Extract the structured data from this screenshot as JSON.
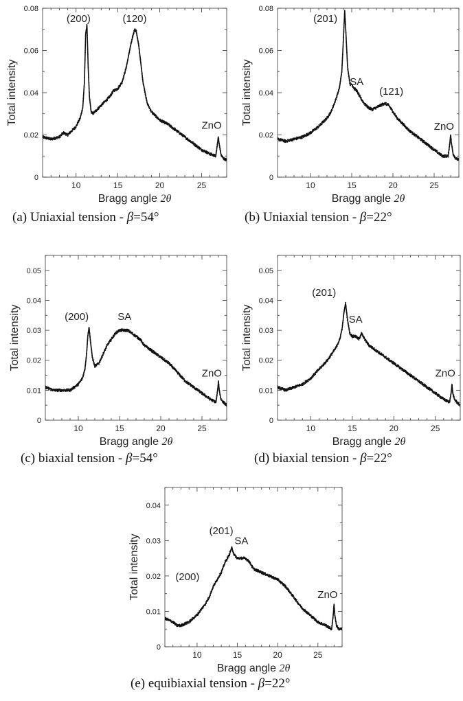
{
  "chart_data": [
    {
      "type": "scatter",
      "caption": "(a) Uniaxial tension - ",
      "caption_beta": "β",
      "caption_value": "=54°",
      "xlabel": "Bragg angle ",
      "xlabel_symbol": "2θ",
      "ylabel": "Total intensity",
      "xlim": [
        6,
        28
      ],
      "ylim": [
        0,
        0.08
      ],
      "xticks": [
        10,
        15,
        20,
        25
      ],
      "yticks": [
        0,
        0.02,
        0.04,
        0.06,
        0.08
      ],
      "ytick_labels": [
        "0",
        "0.02",
        "0.04",
        "0.06",
        "0.08"
      ],
      "annotations": [
        {
          "text": "(200)",
          "x": 10.3,
          "y": 0.0735
        },
        {
          "text": "(120)",
          "x": 17.0,
          "y": 0.0735
        },
        {
          "text": "ZnO",
          "x": 26.2,
          "y": 0.023
        }
      ],
      "series": [
        {
          "x": [
            6.0,
            7.0,
            8.0,
            8.5,
            9.0,
            9.5,
            10.0,
            10.5,
            10.8,
            11.0,
            11.15,
            11.3,
            11.45,
            11.6,
            11.8,
            12.0,
            12.5,
            13.0,
            13.5,
            14.0,
            14.5,
            15.0,
            15.5,
            16.0,
            16.5,
            16.8,
            17.0,
            17.2,
            17.5,
            18.0,
            18.5,
            19.0,
            20.0,
            21.0,
            22.0,
            23.0,
            24.0,
            25.0,
            26.0,
            26.7,
            26.9,
            27.0,
            27.1,
            27.3,
            27.6,
            28.0
          ],
          "values": [
            0.019,
            0.018,
            0.019,
            0.021,
            0.02,
            0.022,
            0.024,
            0.028,
            0.033,
            0.045,
            0.068,
            0.072,
            0.052,
            0.038,
            0.031,
            0.03,
            0.032,
            0.034,
            0.036,
            0.038,
            0.041,
            0.042,
            0.045,
            0.052,
            0.062,
            0.067,
            0.07,
            0.069,
            0.062,
            0.045,
            0.035,
            0.031,
            0.027,
            0.025,
            0.022,
            0.019,
            0.016,
            0.013,
            0.011,
            0.01,
            0.016,
            0.019,
            0.016,
            0.011,
            0.009,
            0.008
          ]
        }
      ]
    },
    {
      "type": "scatter",
      "caption": "(b) Uniaxial tension - ",
      "caption_beta": "β",
      "caption_value": "=22°",
      "xlabel": "Bragg angle ",
      "xlabel_symbol": "2θ",
      "ylabel": "Total intensity",
      "xlim": [
        6,
        28
      ],
      "ylim": [
        0,
        0.08
      ],
      "xticks": [
        10,
        15,
        20,
        25
      ],
      "yticks": [
        0,
        0.02,
        0.04,
        0.06,
        0.08
      ],
      "ytick_labels": [
        "0",
        "0.02",
        "0.04",
        "0.06",
        "0.08"
      ],
      "annotations": [
        {
          "text": "(201)",
          "x": 11.8,
          "y": 0.0735
        },
        {
          "text": "SA",
          "x": 15.6,
          "y": 0.0435
        },
        {
          "text": "(121)",
          "x": 19.8,
          "y": 0.039
        },
        {
          "text": "ZnO",
          "x": 26.2,
          "y": 0.0225
        }
      ],
      "series": [
        {
          "x": [
            6.0,
            7.0,
            8.0,
            9.0,
            10.0,
            11.0,
            12.0,
            12.5,
            13.0,
            13.5,
            13.8,
            14.0,
            14.15,
            14.3,
            14.5,
            14.8,
            15.0,
            15.3,
            15.6,
            16.0,
            16.5,
            17.0,
            17.5,
            18.0,
            18.5,
            19.0,
            19.5,
            20.0,
            20.5,
            21.0,
            22.0,
            23.0,
            24.0,
            25.0,
            26.0,
            26.7,
            26.9,
            27.0,
            27.1,
            27.3,
            27.6,
            28.0
          ],
          "values": [
            0.018,
            0.017,
            0.018,
            0.019,
            0.021,
            0.024,
            0.028,
            0.031,
            0.036,
            0.042,
            0.05,
            0.066,
            0.079,
            0.068,
            0.052,
            0.044,
            0.044,
            0.042,
            0.041,
            0.038,
            0.035,
            0.033,
            0.032,
            0.033,
            0.034,
            0.035,
            0.034,
            0.031,
            0.028,
            0.026,
            0.022,
            0.019,
            0.016,
            0.013,
            0.01,
            0.01,
            0.016,
            0.02,
            0.016,
            0.011,
            0.009,
            0.008
          ]
        }
      ]
    },
    {
      "type": "scatter",
      "caption": "(c) biaxial tension - ",
      "caption_beta": "β",
      "caption_value": "=54°",
      "xlabel": "Bragg angle ",
      "xlabel_symbol": "2θ",
      "ylabel": "Total intensity",
      "xlim": [
        6,
        28
      ],
      "ylim": [
        0,
        0.055
      ],
      "xticks": [
        10,
        15,
        20,
        25
      ],
      "yticks": [
        0,
        0.01,
        0.02,
        0.03,
        0.04,
        0.05
      ],
      "ytick_labels": [
        "0",
        "0.01",
        "0.02",
        "0.03",
        "0.04",
        "0.05"
      ],
      "annotations": [
        {
          "text": "(200)",
          "x": 9.8,
          "y": 0.0335
        },
        {
          "text": "SA",
          "x": 15.6,
          "y": 0.0335
        },
        {
          "text": "ZnO",
          "x": 26.2,
          "y": 0.0145
        }
      ],
      "series": [
        {
          "x": [
            6.0,
            7.0,
            8.0,
            9.0,
            10.0,
            10.5,
            10.8,
            11.0,
            11.15,
            11.3,
            11.45,
            11.7,
            12.0,
            12.5,
            13.0,
            13.5,
            14.0,
            14.5,
            15.0,
            15.5,
            16.0,
            16.5,
            17.0,
            17.5,
            18.0,
            19.0,
            20.0,
            21.0,
            22.0,
            23.0,
            24.0,
            25.0,
            26.0,
            26.7,
            26.9,
            27.0,
            27.1,
            27.3,
            27.6,
            28.0
          ],
          "values": [
            0.011,
            0.01,
            0.01,
            0.01,
            0.012,
            0.014,
            0.017,
            0.022,
            0.028,
            0.031,
            0.027,
            0.021,
            0.018,
            0.019,
            0.022,
            0.025,
            0.027,
            0.029,
            0.03,
            0.03,
            0.03,
            0.029,
            0.028,
            0.027,
            0.025,
            0.023,
            0.021,
            0.019,
            0.016,
            0.013,
            0.011,
            0.009,
            0.007,
            0.006,
            0.01,
            0.013,
            0.01,
            0.007,
            0.006,
            0.005
          ]
        }
      ]
    },
    {
      "type": "scatter",
      "caption": "(d) biaxial tension - ",
      "caption_beta": "β",
      "caption_value": "=22°",
      "xlabel": "Bragg angle ",
      "xlabel_symbol": "2θ",
      "ylabel": "Total intensity",
      "xlim": [
        6,
        28
      ],
      "ylim": [
        0,
        0.055
      ],
      "xticks": [
        10,
        15,
        20,
        25
      ],
      "yticks": [
        0,
        0.01,
        0.02,
        0.03,
        0.04,
        0.05
      ],
      "ytick_labels": [
        "0",
        "0.01",
        "0.02",
        "0.03",
        "0.04",
        "0.05"
      ],
      "annotations": [
        {
          "text": "(201)",
          "x": 11.6,
          "y": 0.0415
        },
        {
          "text": "SA",
          "x": 15.4,
          "y": 0.0325
        },
        {
          "text": "ZnO",
          "x": 26.2,
          "y": 0.0145
        }
      ],
      "series": [
        {
          "x": [
            6.0,
            7.0,
            8.0,
            9.0,
            10.0,
            11.0,
            12.0,
            12.5,
            13.0,
            13.5,
            13.8,
            14.0,
            14.2,
            14.4,
            14.7,
            15.0,
            15.4,
            15.8,
            16.1,
            16.5,
            17.0,
            17.5,
            18.0,
            18.5,
            19.0,
            20.0,
            21.0,
            22.0,
            23.0,
            24.0,
            25.0,
            26.0,
            26.7,
            26.9,
            27.0,
            27.1,
            27.3,
            27.6,
            28.0
          ],
          "values": [
            0.011,
            0.01,
            0.011,
            0.012,
            0.014,
            0.017,
            0.02,
            0.022,
            0.024,
            0.027,
            0.031,
            0.036,
            0.039,
            0.034,
            0.029,
            0.028,
            0.028,
            0.027,
            0.029,
            0.027,
            0.025,
            0.024,
            0.023,
            0.022,
            0.021,
            0.019,
            0.017,
            0.015,
            0.013,
            0.011,
            0.009,
            0.007,
            0.006,
            0.009,
            0.012,
            0.009,
            0.007,
            0.006,
            0.005
          ]
        }
      ]
    },
    {
      "type": "scatter",
      "caption": "(e) equibiaxial tension - ",
      "caption_beta": "β",
      "caption_value": "=22°",
      "xlabel": "Bragg angle ",
      "xlabel_symbol": "2θ",
      "ylabel": "Total intensity",
      "xlim": [
        6,
        28
      ],
      "ylim": [
        0,
        0.045
      ],
      "xticks": [
        10,
        15,
        20,
        25
      ],
      "yticks": [
        0,
        0.01,
        0.02,
        0.03,
        0.04
      ],
      "ytick_labels": [
        "0",
        "0.01",
        "0.02",
        "0.03",
        "0.04"
      ],
      "annotations": [
        {
          "text": "(201)",
          "x": 13.0,
          "y": 0.0318
        },
        {
          "text": "SA",
          "x": 15.5,
          "y": 0.029
        },
        {
          "text": "(200)",
          "x": 8.8,
          "y": 0.0188
        },
        {
          "text": "ZnO",
          "x": 26.2,
          "y": 0.0138
        }
      ],
      "series": [
        {
          "x": [
            6.0,
            7.0,
            7.5,
            8.0,
            9.0,
            10.0,
            11.0,
            11.5,
            12.0,
            12.5,
            13.0,
            13.5,
            14.0,
            14.3,
            14.6,
            15.0,
            15.5,
            16.0,
            16.5,
            17.0,
            18.0,
            19.0,
            20.0,
            21.0,
            22.0,
            23.0,
            24.0,
            25.0,
            26.0,
            26.7,
            26.9,
            27.0,
            27.1,
            27.3,
            27.6,
            28.0
          ],
          "values": [
            0.008,
            0.007,
            0.006,
            0.006,
            0.007,
            0.009,
            0.012,
            0.014,
            0.017,
            0.019,
            0.021,
            0.024,
            0.026,
            0.028,
            0.026,
            0.025,
            0.025,
            0.025,
            0.024,
            0.022,
            0.021,
            0.02,
            0.019,
            0.017,
            0.014,
            0.011,
            0.009,
            0.007,
            0.006,
            0.005,
            0.009,
            0.012,
            0.009,
            0.006,
            0.005,
            0.005
          ]
        }
      ]
    }
  ]
}
